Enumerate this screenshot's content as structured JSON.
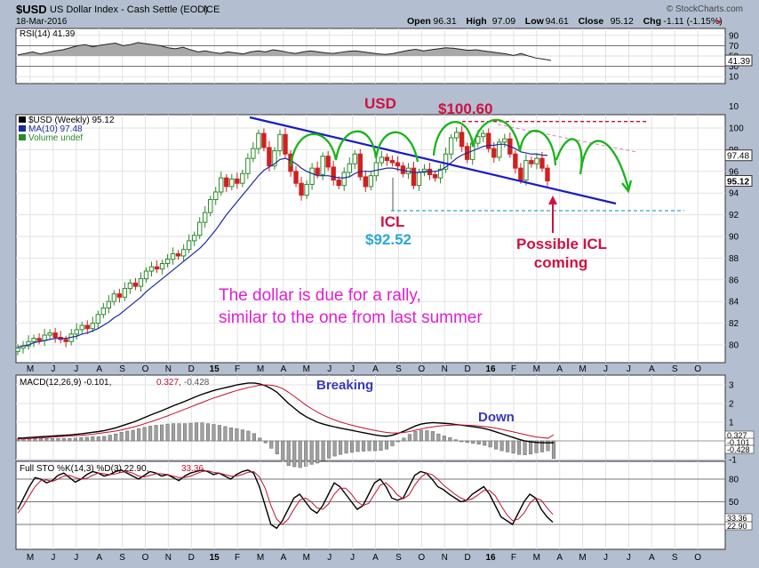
{
  "header": {
    "symbol": "$USD",
    "name": "US Dollar Index - Cash Settle (EOD)",
    "exchange": "ICE",
    "date": "18-Mar-2016",
    "copyright": "© StockCharts.com",
    "ohlc": [
      {
        "label": "Open",
        "value": "96.31"
      },
      {
        "label": "High",
        "value": "97.09"
      },
      {
        "label": "Low",
        "value": "94.61"
      },
      {
        "label": "Close",
        "value": "95.12"
      },
      {
        "label": "Chg",
        "value": "-1.11 (-1.15%)"
      }
    ]
  },
  "colors": {
    "panel_bg": "#ffffff",
    "frame_bg": "#b3bfd0",
    "candle_up": "#2a8a2a",
    "candle_down": "#d02020",
    "ma_line": "#1a2aa0",
    "trend_blue": "#1a1ac8",
    "projection_green": "#19b419",
    "red_ann": "#d01040",
    "cyan_ann": "#2aa8d8",
    "magenta_ann": "#e020d0",
    "navy_ann": "#3838b8"
  },
  "x_axis": {
    "labels": [
      "M",
      "J",
      "J",
      "A",
      "S",
      "O",
      "N",
      "D",
      "15",
      "F",
      "M",
      "A",
      "M",
      "J",
      "J",
      "A",
      "S",
      "O",
      "N",
      "D",
      "16",
      "F",
      "M",
      "A",
      "M",
      "J",
      "J",
      "A",
      "S",
      "O"
    ]
  },
  "rsi": {
    "label": "RSI(14) 41.39",
    "value": 41.39,
    "ticks": [
      "90",
      "70",
      "50",
      "30",
      "10"
    ],
    "badge": "41.39",
    "values": [
      52,
      55,
      58,
      54,
      57,
      60,
      62,
      66,
      70,
      72,
      68,
      71,
      73,
      75,
      70,
      72,
      76,
      74,
      72,
      70,
      66,
      64,
      67,
      62,
      58,
      60,
      57,
      55,
      58,
      56,
      54,
      58,
      60,
      58,
      62,
      60,
      57,
      55,
      58,
      60,
      58,
      56,
      55,
      57,
      59,
      60,
      58,
      56,
      54,
      53,
      55,
      58,
      61,
      63,
      60,
      62,
      64,
      66,
      65,
      63,
      61,
      62,
      60,
      58,
      56,
      54,
      51,
      55,
      50,
      46,
      44,
      41.39
    ]
  },
  "price": {
    "legend": [
      {
        "text": "$USD (Weekly) 95.12",
        "color": "#000000"
      },
      {
        "text": "MA(10) 97.48",
        "color": "#1a2aa0"
      },
      {
        "text": "Volume undef",
        "color": "#2a8a2a"
      }
    ],
    "ticks": [
      100,
      98,
      96,
      94,
      92,
      90,
      88,
      86,
      84,
      82,
      80
    ],
    "tick_labels": [
      "100",
      "98",
      "96",
      "94",
      "92",
      "90",
      "88",
      "86",
      "84",
      "82",
      "80"
    ],
    "badge_ma": "97.48",
    "badge_close": "95.12",
    "ma_value": 97.48,
    "close_value": 95.12,
    "closes": [
      79.7,
      79.9,
      80.3,
      80.6,
      80.4,
      80.9,
      81.1,
      80.7,
      80.5,
      80.3,
      81.0,
      81.4,
      81.8,
      81.5,
      82.0,
      82.8,
      83.4,
      84.0,
      84.7,
      84.4,
      85.2,
      85.7,
      85.4,
      86.1,
      86.8,
      87.2,
      87.0,
      87.5,
      87.9,
      88.4,
      88.2,
      88.8,
      89.6,
      90.1,
      91.3,
      92.2,
      93.4,
      94.1,
      95.4,
      94.6,
      95.3,
      94.9,
      95.8,
      97.2,
      98.1,
      99.5,
      98.2,
      96.5,
      97.9,
      99.4,
      97.6,
      96.0,
      94.9,
      93.8,
      94.8,
      96.3,
      95.7,
      97.4,
      96.4,
      95.2,
      94.7,
      95.9,
      96.7,
      97.6,
      95.5,
      94.6,
      95.6,
      96.8,
      97.3,
      97.0,
      96.8,
      96.5,
      95.8,
      96.3,
      94.7,
      95.9,
      96.2,
      95.7,
      95.4,
      96.2,
      97.6,
      99.1,
      99.6,
      98.3,
      97.1,
      98.6,
      99.2,
      99.5,
      98.1,
      97.3,
      98.7,
      99.0,
      97.6,
      96.3,
      95.2,
      97.0,
      96.7,
      97.2,
      96.3,
      95.12
    ],
    "ma": [
      79.8,
      79.9,
      80.0,
      80.2,
      80.3,
      80.4,
      80.5,
      80.6,
      80.6,
      80.6,
      80.7,
      80.8,
      81.0,
      81.1,
      81.3,
      81.5,
      81.8,
      82.1,
      82.5,
      82.8,
      83.2,
      83.6,
      84.0,
      84.4,
      84.9,
      85.3,
      85.7,
      86.1,
      86.5,
      86.9,
      87.3,
      87.7,
      88.1,
      88.5,
      88.9,
      89.4,
      90.0,
      90.6,
      91.3,
      92.0,
      92.6,
      93.2,
      93.8,
      94.4,
      95.0,
      95.6,
      96.1,
      96.4,
      96.7,
      97.1,
      97.2,
      97.0,
      96.7,
      96.3,
      96.0,
      95.8,
      95.6,
      95.6,
      95.6,
      95.5,
      95.4,
      95.4,
      95.5,
      95.8,
      96.0,
      96.0,
      96.0,
      96.1,
      96.2,
      96.3,
      96.3,
      96.2,
      96.1,
      96.0,
      95.9,
      95.9,
      96.0,
      96.0,
      96.0,
      96.1,
      96.4,
      96.8,
      97.2,
      97.5,
      97.7,
      97.9,
      98.1,
      98.3,
      98.4,
      98.4,
      98.5,
      98.5,
      98.3,
      98.1,
      97.8,
      97.7,
      97.6,
      97.6,
      97.5,
      97.48
    ],
    "annotations": {
      "usd": "USD",
      "high": "$100.60",
      "icl": "ICL",
      "low": "$92.52",
      "possible": [
        "Possible ICL",
        "coming"
      ],
      "comment": [
        "The dollar is due for a rally,",
        "similar to the one from last summer"
      ]
    },
    "high_level": 100.6,
    "low_level": 92.52
  },
  "macd": {
    "label_main": "MACD(12,26,9) -0.101,",
    "label_signal": "0.327,",
    "label_hist": "-0.428",
    "ticks": [
      3,
      2,
      1,
      0,
      -1
    ],
    "tick_labels": [
      "3",
      "2",
      "1",
      "",
      "-1"
    ],
    "badges": [
      "0.327",
      "-0.101",
      "-0.428"
    ],
    "annotations": {
      "breaking": "Breaking",
      "down": "Down"
    },
    "macd": [
      0.15,
      0.16,
      0.18,
      0.2,
      0.22,
      0.24,
      0.26,
      0.28,
      0.3,
      0.32,
      0.35,
      0.38,
      0.42,
      0.46,
      0.5,
      0.55,
      0.62,
      0.7,
      0.8,
      0.9,
      1.0,
      1.12,
      1.25,
      1.38,
      1.5,
      1.62,
      1.75,
      1.88,
      2.0,
      2.12,
      2.25,
      2.38,
      2.5,
      2.6,
      2.7,
      2.78,
      2.85,
      2.92,
      3.0,
      3.05,
      3.1,
      3.1,
      3.05,
      2.95,
      2.8,
      2.6,
      2.3,
      2.0,
      1.75,
      1.5,
      1.3,
      1.15,
      1.0,
      0.9,
      0.82,
      0.75,
      0.68,
      0.62,
      0.56,
      0.5,
      0.44,
      0.38,
      0.32,
      0.27,
      0.25,
      0.3,
      0.4,
      0.52,
      0.66,
      0.8,
      0.9,
      0.95,
      0.98,
      0.96,
      0.94,
      0.92,
      0.88,
      0.84,
      0.8,
      0.76,
      0.72,
      0.66,
      0.58,
      0.48,
      0.38,
      0.28,
      0.18,
      0.08,
      0.0,
      -0.05,
      -0.08,
      -0.1,
      -0.1,
      -0.101
    ],
    "signal": [
      0.1,
      0.11,
      0.13,
      0.15,
      0.16,
      0.18,
      0.2,
      0.22,
      0.24,
      0.26,
      0.28,
      0.3,
      0.33,
      0.36,
      0.4,
      0.44,
      0.48,
      0.53,
      0.59,
      0.66,
      0.74,
      0.82,
      0.92,
      1.02,
      1.12,
      1.23,
      1.34,
      1.46,
      1.58,
      1.7,
      1.82,
      1.94,
      2.06,
      2.18,
      2.3,
      2.4,
      2.5,
      2.6,
      2.7,
      2.78,
      2.86,
      2.92,
      2.98,
      3.0,
      2.98,
      2.92,
      2.8,
      2.6,
      2.38,
      2.15,
      1.92,
      1.72,
      1.54,
      1.38,
      1.24,
      1.12,
      1.01,
      0.92,
      0.84,
      0.76,
      0.69,
      0.62,
      0.56,
      0.5,
      0.45,
      0.42,
      0.42,
      0.45,
      0.5,
      0.57,
      0.64,
      0.7,
      0.75,
      0.79,
      0.82,
      0.84,
      0.85,
      0.85,
      0.84,
      0.82,
      0.8,
      0.77,
      0.73,
      0.68,
      0.62,
      0.55,
      0.48,
      0.41,
      0.34,
      0.27,
      0.21,
      0.17,
      0.14,
      0.327
    ]
  },
  "sto": {
    "label_main": "Full STO %K(14,3) %D(3) 22.90,",
    "label_d": "33.36",
    "ticks": [
      80,
      50,
      20
    ],
    "tick_labels": [
      "80",
      "50",
      "20"
    ],
    "badges": [
      "33.36",
      "22.90"
    ],
    "k": [
      40,
      55,
      70,
      82,
      80,
      75,
      78,
      85,
      88,
      82,
      76,
      80,
      86,
      90,
      88,
      84,
      86,
      90,
      92,
      88,
      84,
      80,
      85,
      90,
      88,
      84,
      86,
      82,
      78,
      84,
      88,
      90,
      92,
      90,
      86,
      88,
      84,
      80,
      86,
      90,
      92,
      88,
      70,
      45,
      20,
      15,
      25,
      40,
      55,
      60,
      50,
      40,
      35,
      45,
      60,
      75,
      70,
      60,
      50,
      40,
      45,
      60,
      75,
      80,
      70,
      55,
      52,
      55,
      70,
      85,
      90,
      88,
      80,
      70,
      66,
      60,
      55,
      50,
      52,
      60,
      65,
      70,
      60,
      45,
      30,
      25,
      20,
      35,
      50,
      60,
      55,
      40,
      30,
      22.9
    ],
    "d": [
      35,
      45,
      58,
      70,
      78,
      79,
      77,
      80,
      84,
      85,
      82,
      80,
      81,
      85,
      88,
      87,
      86,
      87,
      89,
      90,
      88,
      84,
      83,
      85,
      87,
      87,
      86,
      84,
      82,
      82,
      84,
      87,
      90,
      91,
      89,
      88,
      86,
      84,
      84,
      86,
      89,
      90,
      83,
      68,
      45,
      27,
      20,
      27,
      40,
      52,
      55,
      50,
      42,
      40,
      47,
      60,
      68,
      68,
      60,
      50,
      45,
      48,
      60,
      72,
      75,
      68,
      59,
      54,
      59,
      72,
      82,
      88,
      86,
      80,
      72,
      66,
      60,
      55,
      52,
      54,
      59,
      65,
      65,
      58,
      45,
      33,
      25,
      27,
      35,
      48,
      55,
      52,
      42,
      33.36
    ]
  }
}
